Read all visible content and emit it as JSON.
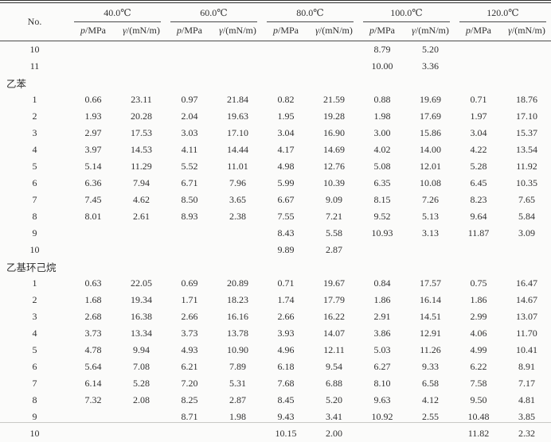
{
  "page": {
    "background": "#fbfbfa",
    "text_color": "#303030",
    "rule_color": "#4a4a4a"
  },
  "table": {
    "no_header": "No.",
    "temps": [
      "40.0℃",
      "60.0℃",
      "80.0℃",
      "100.0℃",
      "120.0℃"
    ],
    "sub_p_symbol": "p",
    "sub_p_unit": "/MPa",
    "sub_gamma_symbol": "γ",
    "sub_gamma_unit": "/(mN/m)",
    "rows": [
      {
        "type": "data",
        "no": "10",
        "cells": [
          "",
          "",
          "",
          "",
          "",
          "",
          "8.79",
          "5.20",
          "",
          ""
        ]
      },
      {
        "type": "data",
        "no": "11",
        "cells": [
          "",
          "",
          "",
          "",
          "",
          "",
          "10.00",
          "3.36",
          "",
          ""
        ]
      },
      {
        "type": "section",
        "label": "乙苯"
      },
      {
        "type": "data",
        "no": "1",
        "cells": [
          "0.66",
          "23.11",
          "0.97",
          "21.84",
          "0.82",
          "21.59",
          "0.88",
          "19.69",
          "0.71",
          "18.76"
        ]
      },
      {
        "type": "data",
        "no": "2",
        "cells": [
          "1.93",
          "20.28",
          "2.04",
          "19.63",
          "1.95",
          "19.28",
          "1.98",
          "17.69",
          "1.97",
          "17.10"
        ]
      },
      {
        "type": "data",
        "no": "3",
        "cells": [
          "2.97",
          "17.53",
          "3.03",
          "17.10",
          "3.04",
          "16.90",
          "3.00",
          "15.86",
          "3.04",
          "15.37"
        ]
      },
      {
        "type": "data",
        "no": "4",
        "cells": [
          "3.97",
          "14.53",
          "4.11",
          "14.44",
          "4.17",
          "14.69",
          "4.02",
          "14.00",
          "4.22",
          "13.54"
        ]
      },
      {
        "type": "data",
        "no": "5",
        "cells": [
          "5.14",
          "11.29",
          "5.52",
          "11.01",
          "4.98",
          "12.76",
          "5.08",
          "12.01",
          "5.28",
          "11.92"
        ]
      },
      {
        "type": "data",
        "no": "6",
        "cells": [
          "6.36",
          "7.94",
          "6.71",
          "7.96",
          "5.99",
          "10.39",
          "6.35",
          "10.08",
          "6.45",
          "10.35"
        ]
      },
      {
        "type": "data",
        "no": "7",
        "cells": [
          "7.45",
          "4.62",
          "8.50",
          "3.65",
          "6.67",
          "9.09",
          "8.15",
          "7.26",
          "8.23",
          "7.65"
        ]
      },
      {
        "type": "data",
        "no": "8",
        "cells": [
          "8.01",
          "2.61",
          "8.93",
          "2.38",
          "7.55",
          "7.21",
          "9.52",
          "5.13",
          "9.64",
          "5.84"
        ]
      },
      {
        "type": "data",
        "no": "9",
        "cells": [
          "",
          "",
          "",
          "",
          "8.43",
          "5.58",
          "10.93",
          "3.13",
          "11.87",
          "3.09"
        ]
      },
      {
        "type": "data",
        "no": "10",
        "cells": [
          "",
          "",
          "",
          "",
          "9.89",
          "2.87",
          "",
          "",
          "",
          ""
        ]
      },
      {
        "type": "section",
        "label": "乙基环己烷"
      },
      {
        "type": "data",
        "no": "1",
        "cells": [
          "0.63",
          "22.05",
          "0.69",
          "20.89",
          "0.71",
          "19.67",
          "0.84",
          "17.57",
          "0.75",
          "16.47"
        ]
      },
      {
        "type": "data",
        "no": "2",
        "cells": [
          "1.68",
          "19.34",
          "1.71",
          "18.23",
          "1.74",
          "17.79",
          "1.86",
          "16.14",
          "1.86",
          "14.67"
        ]
      },
      {
        "type": "data",
        "no": "3",
        "cells": [
          "2.68",
          "16.38",
          "2.66",
          "16.16",
          "2.66",
          "16.22",
          "2.91",
          "14.51",
          "2.99",
          "13.07"
        ]
      },
      {
        "type": "data",
        "no": "4",
        "cells": [
          "3.73",
          "13.34",
          "3.73",
          "13.78",
          "3.93",
          "14.07",
          "3.86",
          "12.91",
          "4.06",
          "11.70"
        ]
      },
      {
        "type": "data",
        "no": "5",
        "cells": [
          "4.78",
          "9.94",
          "4.93",
          "10.90",
          "4.96",
          "12.11",
          "5.03",
          "11.26",
          "4.99",
          "10.41"
        ]
      },
      {
        "type": "data",
        "no": "6",
        "cells": [
          "5.64",
          "7.08",
          "6.21",
          "7.89",
          "6.18",
          "9.54",
          "6.27",
          "9.33",
          "6.22",
          "8.91"
        ]
      },
      {
        "type": "data",
        "no": "7",
        "cells": [
          "6.14",
          "5.28",
          "7.20",
          "5.31",
          "7.68",
          "6.88",
          "8.10",
          "6.58",
          "7.58",
          "7.17"
        ]
      },
      {
        "type": "data",
        "no": "8",
        "cells": [
          "7.32",
          "2.08",
          "8.25",
          "2.87",
          "8.45",
          "5.20",
          "9.63",
          "4.12",
          "9.50",
          "4.81"
        ]
      },
      {
        "type": "data",
        "no": "9",
        "cells": [
          "",
          "",
          "8.71",
          "1.98",
          "9.43",
          "3.41",
          "10.92",
          "2.55",
          "10.48",
          "3.85"
        ]
      },
      {
        "type": "data",
        "no": "10",
        "cells": [
          "",
          "",
          "",
          "",
          "10.15",
          "2.00",
          "",
          "",
          "11.82",
          "2.32"
        ]
      }
    ]
  }
}
